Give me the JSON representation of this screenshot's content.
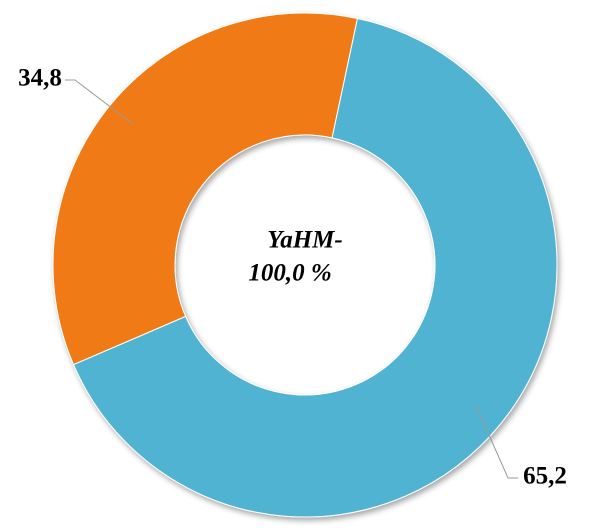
{
  "chart_data": {
    "type": "donut",
    "categories": [
      null,
      null
    ],
    "values": [
      65.2,
      34.8
    ],
    "value_labels": [
      "65,2",
      "34,8"
    ],
    "colors": [
      "#4fb3d1",
      "#f07a12"
    ],
    "annotations": [
      "YaHM-",
      "100,0 %"
    ]
  }
}
